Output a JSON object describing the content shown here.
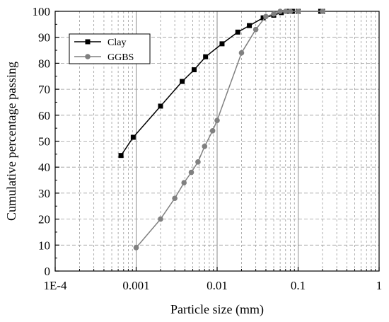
{
  "chart_data": {
    "type": "line",
    "title": "",
    "xlabel": "Particle size (mm)",
    "ylabel": "Cumulative percentage passing",
    "x_scale": "log",
    "xlim": [
      0.0001,
      1
    ],
    "ylim": [
      0,
      100
    ],
    "x_ticks": [
      0.0001,
      0.001,
      0.01,
      0.1,
      1
    ],
    "x_tick_labels": [
      "1E-4",
      "0.001",
      "0.01",
      "0.1",
      "1"
    ],
    "y_ticks": [
      0,
      10,
      20,
      30,
      40,
      50,
      60,
      70,
      80,
      90,
      100
    ],
    "y_tick_labels": [
      "0",
      "10",
      "20",
      "30",
      "40",
      "50",
      "60",
      "70",
      "80",
      "90",
      "100"
    ],
    "grid": true,
    "legend_position": "top-left",
    "series": [
      {
        "name": "Clay",
        "marker": "square",
        "color": "#000000",
        "x": [
          0.00065,
          0.00092,
          0.002,
          0.0037,
          0.0052,
          0.0072,
          0.0115,
          0.018,
          0.025,
          0.037,
          0.05,
          0.062,
          0.075,
          0.085,
          0.1,
          0.19,
          0.2
        ],
        "y": [
          44.5,
          51.5,
          63.5,
          73,
          77.5,
          82.5,
          87.5,
          92,
          94.5,
          97.5,
          98.5,
          99.5,
          100,
          100,
          100,
          100,
          100
        ]
      },
      {
        "name": "GGBS",
        "marker": "circle",
        "color": "#808080",
        "x": [
          0.001,
          0.002,
          0.003,
          0.0039,
          0.0048,
          0.0058,
          0.007,
          0.0088,
          0.01,
          0.02,
          0.03,
          0.04,
          0.05,
          0.06,
          0.07,
          0.08,
          0.1,
          0.2
        ],
        "y": [
          9,
          20,
          28,
          34,
          38,
          42,
          48,
          54,
          58,
          84,
          93,
          98,
          99,
          100,
          100,
          100,
          100,
          100
        ]
      }
    ]
  }
}
